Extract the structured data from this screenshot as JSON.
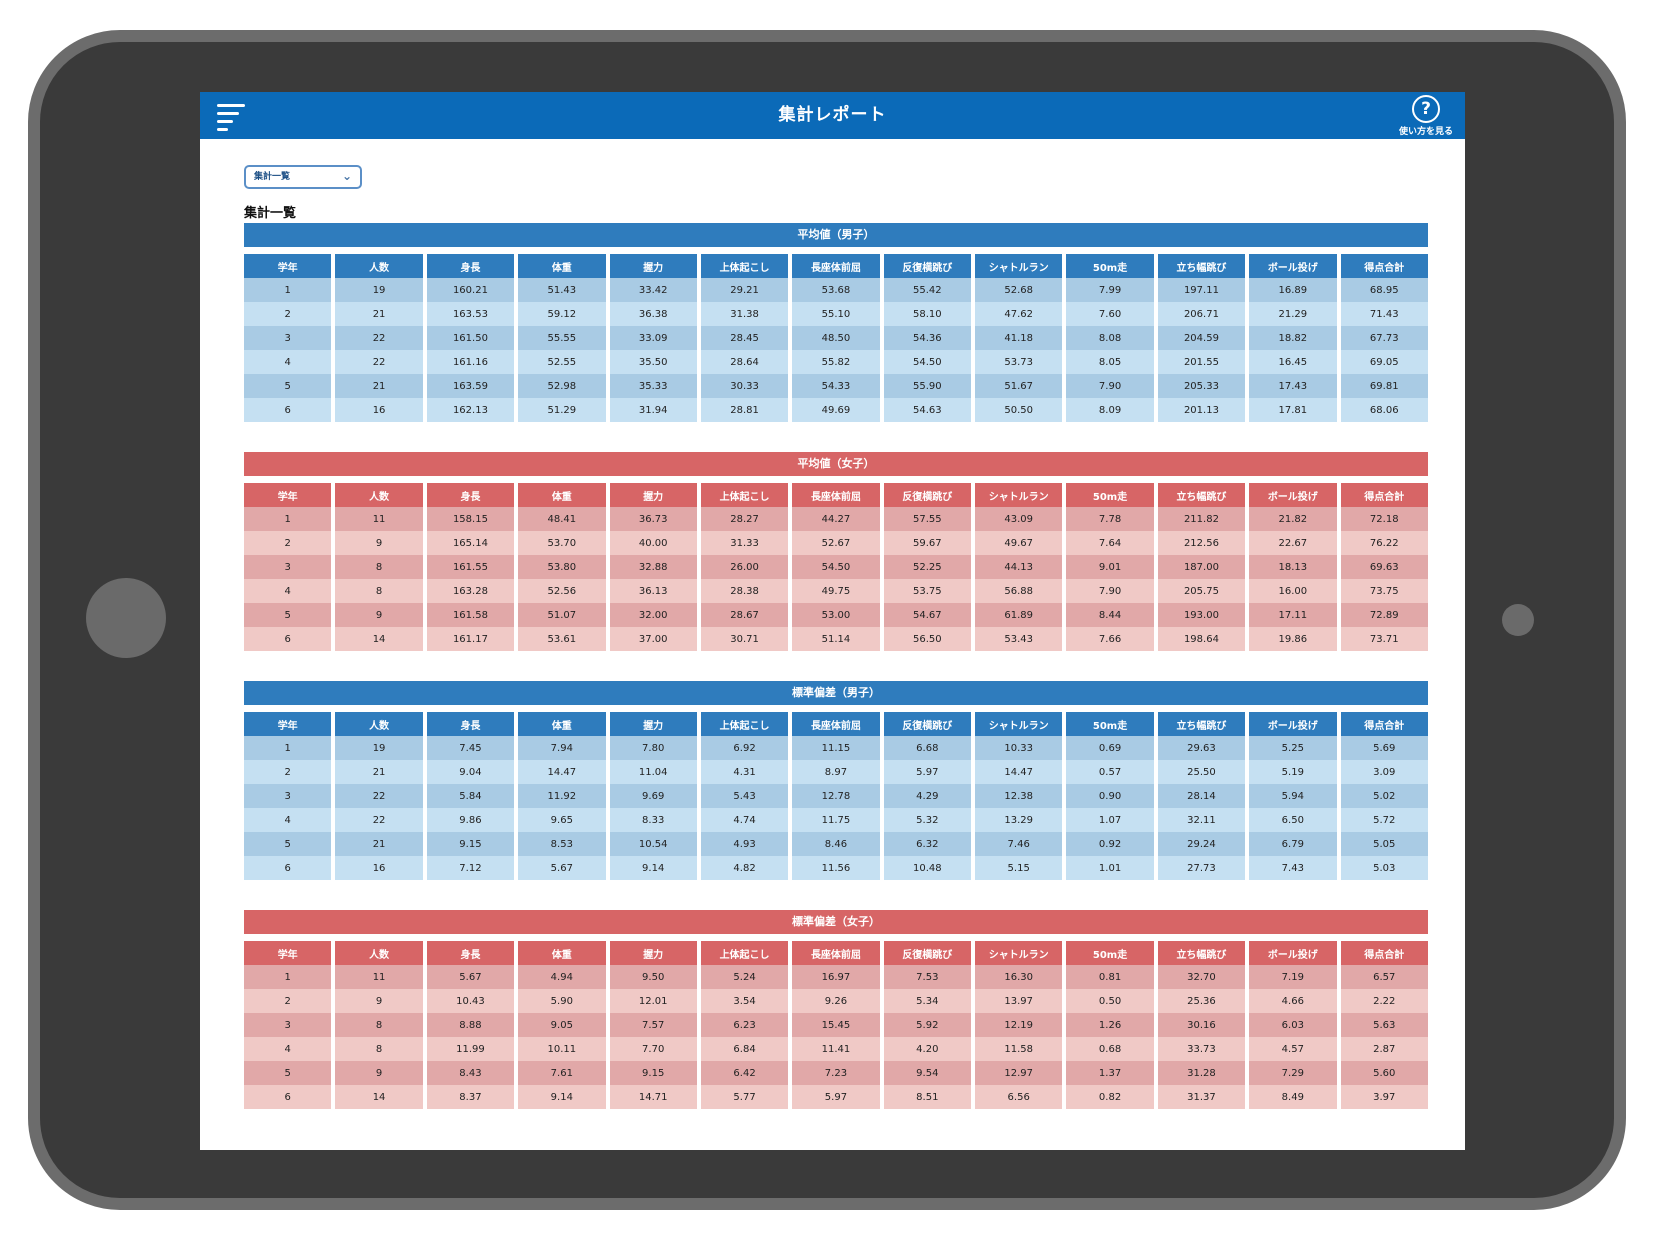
{
  "header": {
    "title": "集計レポート",
    "help_label": "使い方を見る"
  },
  "selector": {
    "value": "集計一覧"
  },
  "page_heading": "集計一覧",
  "columns": [
    "学年",
    "人数",
    "身長",
    "体重",
    "握力",
    "上体起こし",
    "長座体前屈",
    "反復横跳び",
    "シャトルラン",
    "50m走",
    "立ち幅跳び",
    "ボール投げ",
    "得点合計"
  ],
  "sections": [
    {
      "title": "平均値（男子）",
      "rows": [
        [
          "1",
          "19",
          "160.21",
          "51.43",
          "33.42",
          "29.21",
          "53.68",
          "55.42",
          "52.68",
          "7.99",
          "197.11",
          "16.89",
          "68.95"
        ],
        [
          "2",
          "21",
          "163.53",
          "59.12",
          "36.38",
          "31.38",
          "55.10",
          "58.10",
          "47.62",
          "7.60",
          "206.71",
          "21.29",
          "71.43"
        ],
        [
          "3",
          "22",
          "161.50",
          "55.55",
          "33.09",
          "28.45",
          "48.50",
          "54.36",
          "41.18",
          "8.08",
          "204.59",
          "18.82",
          "67.73"
        ],
        [
          "4",
          "22",
          "161.16",
          "52.55",
          "35.50",
          "28.64",
          "55.82",
          "54.50",
          "53.73",
          "8.05",
          "201.55",
          "16.45",
          "69.05"
        ],
        [
          "5",
          "21",
          "163.59",
          "52.98",
          "35.33",
          "30.33",
          "54.33",
          "55.90",
          "51.67",
          "7.90",
          "205.33",
          "17.43",
          "69.81"
        ],
        [
          "6",
          "16",
          "162.13",
          "51.29",
          "31.94",
          "28.81",
          "49.69",
          "54.63",
          "50.50",
          "8.09",
          "201.13",
          "17.81",
          "68.06"
        ]
      ]
    },
    {
      "title": "平均値（女子）",
      "rows": [
        [
          "1",
          "11",
          "158.15",
          "48.41",
          "36.73",
          "28.27",
          "44.27",
          "57.55",
          "43.09",
          "7.78",
          "211.82",
          "21.82",
          "72.18"
        ],
        [
          "2",
          "9",
          "165.14",
          "53.70",
          "40.00",
          "31.33",
          "52.67",
          "59.67",
          "49.67",
          "7.64",
          "212.56",
          "22.67",
          "76.22"
        ],
        [
          "3",
          "8",
          "161.55",
          "53.80",
          "32.88",
          "26.00",
          "54.50",
          "52.25",
          "44.13",
          "9.01",
          "187.00",
          "18.13",
          "69.63"
        ],
        [
          "4",
          "8",
          "163.28",
          "52.56",
          "36.13",
          "28.38",
          "49.75",
          "53.75",
          "56.88",
          "7.90",
          "205.75",
          "16.00",
          "73.75"
        ],
        [
          "5",
          "9",
          "161.58",
          "51.07",
          "32.00",
          "28.67",
          "53.00",
          "54.67",
          "61.89",
          "8.44",
          "193.00",
          "17.11",
          "72.89"
        ],
        [
          "6",
          "14",
          "161.17",
          "53.61",
          "37.00",
          "30.71",
          "51.14",
          "56.50",
          "53.43",
          "7.66",
          "198.64",
          "19.86",
          "73.71"
        ]
      ]
    },
    {
      "title": "標準偏差（男子）",
      "rows": [
        [
          "1",
          "19",
          "7.45",
          "7.94",
          "7.80",
          "6.92",
          "11.15",
          "6.68",
          "10.33",
          "0.69",
          "29.63",
          "5.25",
          "5.69"
        ],
        [
          "2",
          "21",
          "9.04",
          "14.47",
          "11.04",
          "4.31",
          "8.97",
          "5.97",
          "14.47",
          "0.57",
          "25.50",
          "5.19",
          "3.09"
        ],
        [
          "3",
          "22",
          "5.84",
          "11.92",
          "9.69",
          "5.43",
          "12.78",
          "4.29",
          "12.38",
          "0.90",
          "28.14",
          "5.94",
          "5.02"
        ],
        [
          "4",
          "22",
          "9.86",
          "9.65",
          "8.33",
          "4.74",
          "11.75",
          "5.32",
          "13.29",
          "1.07",
          "32.11",
          "6.50",
          "5.72"
        ],
        [
          "5",
          "21",
          "9.15",
          "8.53",
          "10.54",
          "4.93",
          "8.46",
          "6.32",
          "7.46",
          "0.92",
          "29.24",
          "6.79",
          "5.05"
        ],
        [
          "6",
          "16",
          "7.12",
          "5.67",
          "9.14",
          "4.82",
          "11.56",
          "10.48",
          "5.15",
          "1.01",
          "27.73",
          "7.43",
          "5.03"
        ]
      ]
    },
    {
      "title": "標準偏差（女子）",
      "rows": [
        [
          "1",
          "11",
          "5.67",
          "4.94",
          "9.50",
          "5.24",
          "16.97",
          "7.53",
          "16.30",
          "0.81",
          "32.70",
          "7.19",
          "6.57"
        ],
        [
          "2",
          "9",
          "10.43",
          "5.90",
          "12.01",
          "3.54",
          "9.26",
          "5.34",
          "13.97",
          "0.50",
          "25.36",
          "4.66",
          "2.22"
        ],
        [
          "3",
          "8",
          "8.88",
          "9.05",
          "7.57",
          "6.23",
          "15.45",
          "5.92",
          "12.19",
          "1.26",
          "30.16",
          "6.03",
          "5.63"
        ],
        [
          "4",
          "8",
          "11.99",
          "10.11",
          "7.70",
          "6.84",
          "11.41",
          "4.20",
          "11.58",
          "0.68",
          "33.73",
          "4.57",
          "2.87"
        ],
        [
          "5",
          "9",
          "8.43",
          "7.61",
          "9.15",
          "6.42",
          "7.23",
          "9.54",
          "12.97",
          "1.37",
          "31.28",
          "7.29",
          "5.60"
        ],
        [
          "6",
          "14",
          "8.37",
          "9.14",
          "14.71",
          "5.77",
          "5.97",
          "8.51",
          "6.56",
          "0.82",
          "31.37",
          "8.49",
          "3.97"
        ]
      ]
    }
  ]
}
